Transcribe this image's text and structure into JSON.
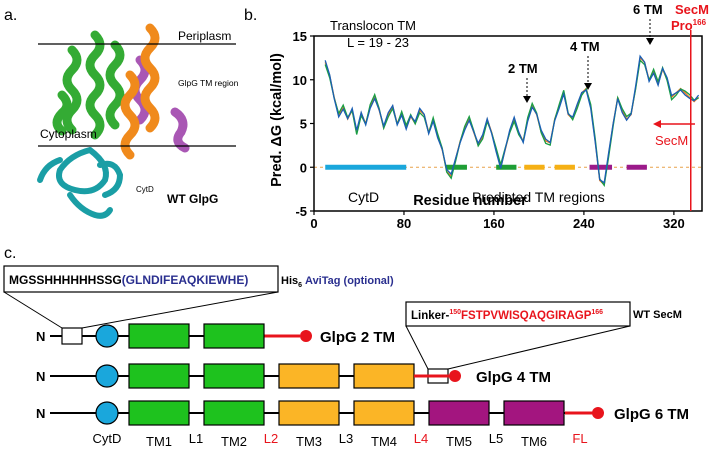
{
  "panel_a": {
    "label": "a.",
    "periplasm": "Periplasm",
    "cytoplasm": "Cytoplasm",
    "glpg_tm_region": "GlpG TM region",
    "cytd": "CytD",
    "wt_glpg": "WT GlpG"
  },
  "panel_b": {
    "label": "b.",
    "title_line1": "Translocon TM",
    "title_line2": "L = 19 - 23",
    "annot_2tm": "2 TM",
    "annot_4tm": "4 TM",
    "annot_6tm": "6 TM",
    "secm_line1": "SecM",
    "secm_line2": "Pro",
    "secm_sup": "166",
    "secm_arrow_label": "SecM",
    "cytd_label": "CytD",
    "tm_regions_label": "Predicted TM regions",
    "colors": {
      "secm": "#e8141c",
      "cytd_bar": "#1aa7dc",
      "green_bar": "#1e9e35",
      "orange_bar": "#f5b015",
      "purple_bar": "#9b1a8a",
      "zero_line": "#e8a24b"
    }
  },
  "chart_data": {
    "type": "line",
    "xlabel": "Residue number",
    "ylabel": "Pred. ΔG (kcal/mol)",
    "xlim": [
      0,
      345
    ],
    "ylim": [
      -5,
      15
    ],
    "xticks": [
      "0",
      "80",
      "160",
      "240",
      "320"
    ],
    "yticks": [
      "-5",
      "0",
      "5",
      "10",
      "15"
    ],
    "secm_x": 335,
    "series": [
      {
        "color": "#f07a1e",
        "offset": 0.0
      },
      {
        "color": "#1a9e44",
        "offset": -0.3
      },
      {
        "color": "#1a5fb4",
        "offset": 0.25
      }
    ],
    "x": [
      10,
      14,
      18,
      22,
      26,
      30,
      34,
      38,
      42,
      46,
      50,
      54,
      58,
      62,
      66,
      70,
      74,
      78,
      82,
      86,
      90,
      94,
      98,
      102,
      106,
      110,
      114,
      118,
      122,
      126,
      130,
      134,
      138,
      142,
      146,
      150,
      154,
      158,
      162,
      166,
      170,
      174,
      178,
      182,
      186,
      190,
      194,
      198,
      202,
      206,
      210,
      214,
      218,
      222,
      226,
      230,
      234,
      238,
      242,
      246,
      250,
      254,
      258,
      262,
      266,
      270,
      274,
      278,
      282,
      286,
      290,
      294,
      298,
      302,
      306,
      310,
      314,
      318,
      322,
      326,
      330,
      334,
      338,
      342
    ],
    "values": [
      12,
      10.5,
      8,
      6,
      6.8,
      5.5,
      6.5,
      4,
      6.2,
      5,
      7,
      8,
      6.5,
      4.5,
      6,
      7,
      5,
      6.2,
      4.5,
      5.8,
      5,
      6.5,
      6,
      4,
      5.5,
      3.5,
      2,
      -0.5,
      -1,
      1,
      3,
      4.5,
      5.5,
      4,
      2.5,
      3.5,
      5.5,
      4,
      2,
      0,
      2,
      4,
      5.5,
      4,
      3,
      5.5,
      7,
      6,
      4,
      3,
      2.8,
      5.5,
      7,
      8.5,
      6,
      5.5,
      7,
      8.5,
      9,
      7,
      3,
      -1.5,
      -2,
      1.5,
      5,
      8,
      6.5,
      5.5,
      6,
      9,
      12.5,
      12,
      10,
      11,
      9.5,
      11.2,
      10,
      8,
      8.5,
      9,
      8.5,
      8,
      7.5,
      8
    ],
    "tm_bars": [
      {
        "color": "#1aa7dc",
        "x1": 10,
        "x2": 82
      },
      {
        "color": "#1e9e35",
        "x1": 117,
        "x2": 136
      },
      {
        "color": "#1e9e35",
        "x1": 162,
        "x2": 180
      },
      {
        "color": "#f5b015",
        "x1": 187,
        "x2": 205
      },
      {
        "color": "#f5b015",
        "x1": 214,
        "x2": 232
      },
      {
        "color": "#9b1a8a",
        "x1": 245,
        "x2": 265
      },
      {
        "color": "#9b1a8a",
        "x1": 278,
        "x2": 296
      }
    ]
  },
  "panel_c": {
    "label": "c.",
    "seq_plain": "MGSSHHHHHHSSG",
    "seq_avi": "(GLNDIFEAQKIEWHE)",
    "his_tag": "His",
    "his_sub": "6",
    "avitag": "AviTag (optional)",
    "linker_prefix": "Linker-",
    "linker_sup_start": "150",
    "linker_seq": "FSTPVWISQAQGIRAGP",
    "linker_sup_end": "166",
    "wt_secm": "WT SecM",
    "n_label": "N",
    "construct_2tm": "GlpG 2 TM",
    "construct_4tm": "GlpG 4 TM",
    "construct_6tm": "GlpG 6 TM",
    "bottom_labels": {
      "cytd": "CytD",
      "tm1": "TM1",
      "l1": "L1",
      "tm2": "TM2",
      "l2": "L2",
      "tm3": "TM3",
      "l3": "L3",
      "tm4": "TM4",
      "l4": "L4",
      "tm5": "TM5",
      "l5": "L5",
      "tm6": "TM6",
      "fl": "FL"
    },
    "colors": {
      "green": "#1ec21e",
      "orange": "#fbb526",
      "purple": "#a3157f",
      "blue": "#1aa7dc",
      "red": "#e8141c",
      "avi_blue": "#2a2f8f"
    }
  }
}
